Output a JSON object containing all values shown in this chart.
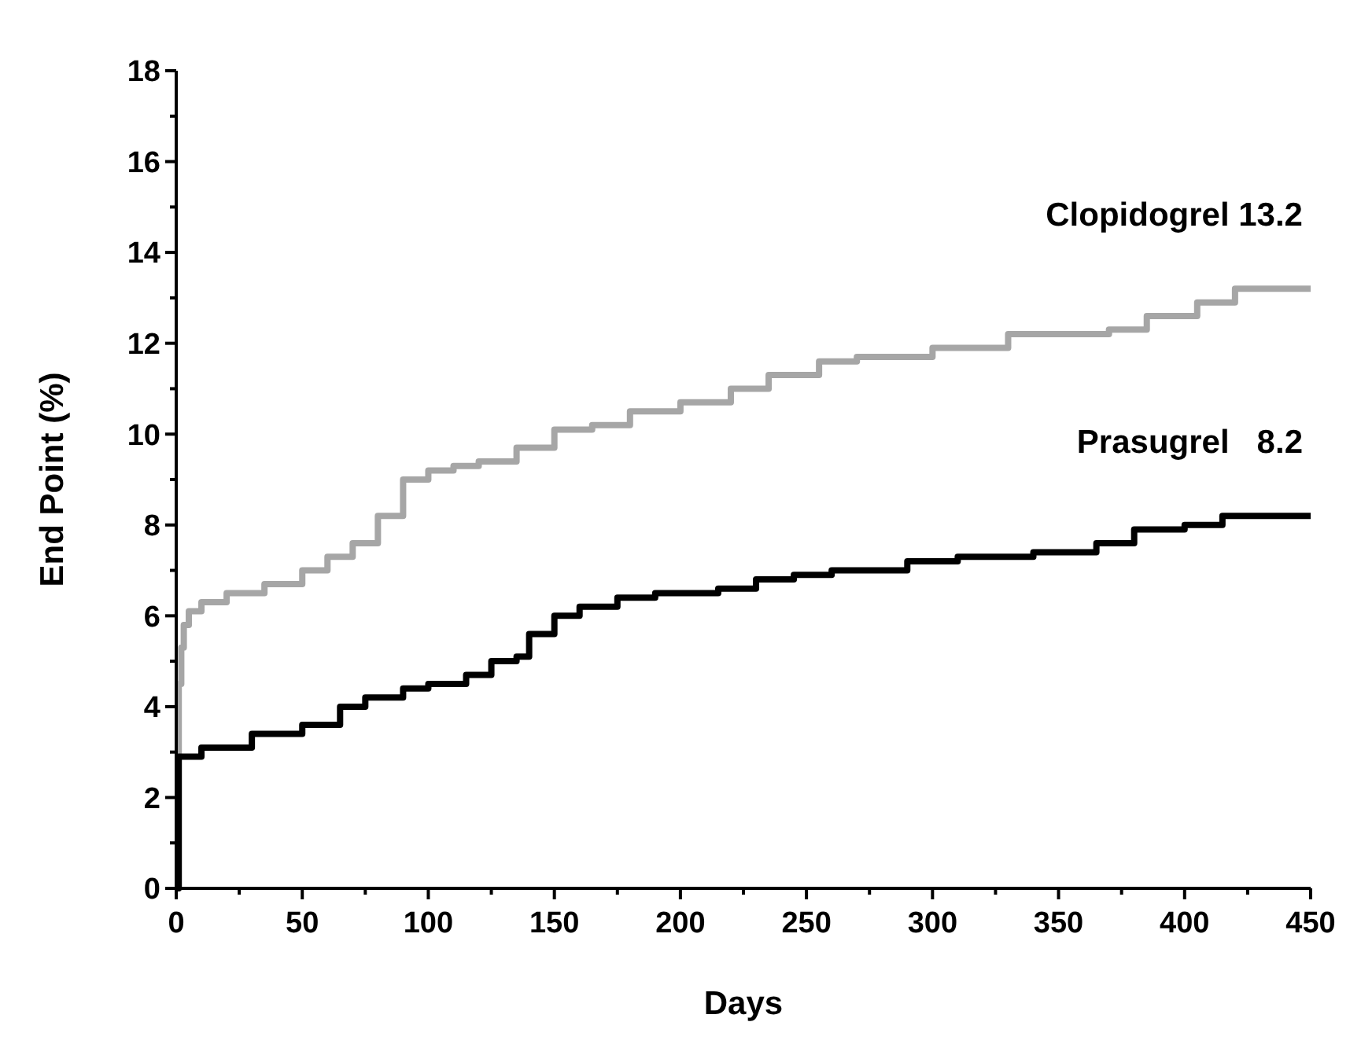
{
  "chart_data": {
    "type": "step",
    "xlabel": "Days",
    "ylabel": "End Point (%)",
    "xlim": [
      0,
      450
    ],
    "ylim": [
      0,
      18
    ],
    "xticks": [
      0,
      {
        "value": 25,
        "label": null
      },
      50,
      {
        "value": 75,
        "label": null
      },
      100,
      {
        "value": 125,
        "label": null
      },
      150,
      {
        "value": 175,
        "label": null
      },
      200,
      {
        "value": 225,
        "label": null
      },
      250,
      {
        "value": 275,
        "label": null
      },
      300,
      {
        "value": 325,
        "label": null
      },
      350,
      {
        "value": 375,
        "label": null
      },
      400,
      {
        "value": 425,
        "label": null
      },
      450
    ],
    "yticks": [
      0,
      {
        "value": 1,
        "label": null
      },
      2,
      {
        "value": 3,
        "label": null
      },
      4,
      {
        "value": 5,
        "label": null
      },
      6,
      {
        "value": 7,
        "label": null
      },
      8,
      {
        "value": 9,
        "label": null
      },
      10,
      {
        "value": 11,
        "label": null
      },
      12,
      {
        "value": 13,
        "label": null
      },
      14,
      {
        "value": 15,
        "label": null
      },
      16,
      {
        "value": 17,
        "label": null
      },
      18
    ],
    "grid": false,
    "series": [
      {
        "color": "#a6a6a6",
        "x": [
          0,
          1,
          2,
          3,
          5,
          10,
          20,
          35,
          50,
          60,
          70,
          80,
          90,
          100,
          110,
          120,
          135,
          150,
          165,
          180,
          200,
          220,
          235,
          255,
          270,
          290,
          300,
          320,
          330,
          370,
          385,
          405,
          420,
          450
        ],
        "values": [
          2.9,
          4.5,
          5.3,
          5.8,
          6.1,
          6.3,
          6.5,
          6.7,
          7.0,
          7.3,
          7.6,
          8.2,
          9.0,
          9.2,
          9.3,
          9.4,
          9.7,
          10.1,
          10.2,
          10.5,
          10.7,
          11.0,
          11.3,
          11.6,
          11.7,
          11.7,
          11.9,
          11.9,
          12.2,
          12.3,
          12.6,
          12.9,
          13.2,
          13.2
        ]
      },
      {
        "color": "#000000",
        "x": [
          0,
          1,
          10,
          30,
          50,
          65,
          75,
          90,
          100,
          115,
          125,
          135,
          140,
          150,
          160,
          175,
          190,
          215,
          230,
          245,
          260,
          290,
          310,
          340,
          365,
          380,
          400,
          415,
          450
        ],
        "values": [
          0,
          2.9,
          3.1,
          3.4,
          3.6,
          4.0,
          4.2,
          4.4,
          4.5,
          4.7,
          5.0,
          5.1,
          5.6,
          6.0,
          6.2,
          6.4,
          6.5,
          6.6,
          6.8,
          6.9,
          7.0,
          7.2,
          7.3,
          7.4,
          7.6,
          7.9,
          8.0,
          8.2,
          8.2
        ]
      }
    ],
    "annotations": [
      {
        "text": "Clopidogrel 13.2",
        "x": 450,
        "y": 13.2
      },
      {
        "text": "Prasugrel   8.2",
        "x": 450,
        "y": 8.2
      }
    ]
  }
}
